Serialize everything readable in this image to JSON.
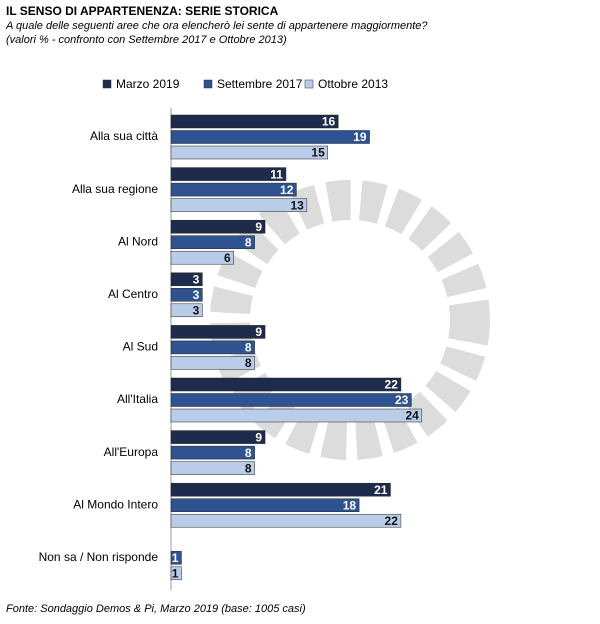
{
  "chart_data": {
    "type": "bar",
    "orientation": "horizontal",
    "title": "IL SENSO DI APPARTENENZA:  SERIE STORICA",
    "subtitle": "A quale delle seguenti aree che ora elencherò lei sente di appartenere maggiormente?",
    "note": "(valori % - confronto con Settembre 2017 e Ottobre 2013)",
    "source": "Fonte: Sondaggio Demos & Pi, Marzo 2019 (base: 1005 casi)",
    "categories": [
      "Alla sua città",
      "Alla sua regione",
      "Al Nord",
      "Al Centro",
      "Al Sud",
      "All'Italia",
      "All'Europa",
      "Al Mondo Intero",
      "Non sa / Non risponde"
    ],
    "series": [
      {
        "name": "Marzo 2019",
        "color": "#1f2b4a",
        "values": [
          16,
          11,
          9,
          3,
          9,
          22,
          9,
          21,
          null
        ]
      },
      {
        "name": "Settembre 2017",
        "color": "#2f5290",
        "values": [
          19,
          12,
          8,
          3,
          8,
          23,
          8,
          18,
          1
        ]
      },
      {
        "name": "Ottobre 2013",
        "color": "#b9cde9",
        "values": [
          15,
          13,
          6,
          3,
          8,
          24,
          8,
          22,
          1
        ]
      }
    ]
  }
}
